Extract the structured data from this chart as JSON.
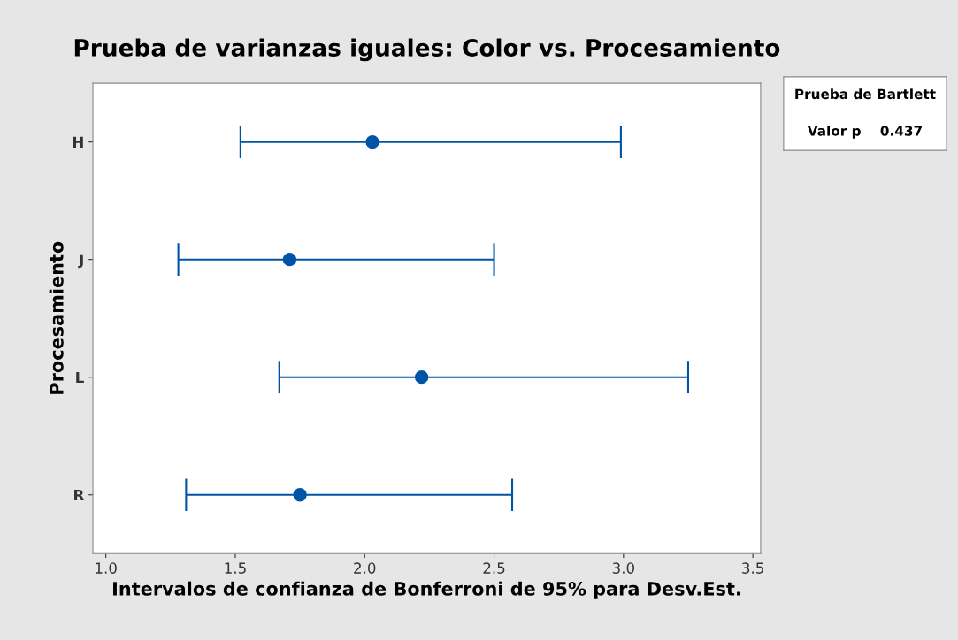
{
  "chart_data": {
    "type": "scatter",
    "orientation": "horizontal",
    "title": "Prueba de varianzas iguales: Color vs. Procesamiento",
    "xlabel": "Intervalos de confianza de Bonferroni de 95% para Desv.Est.",
    "ylabel": "Procesamiento",
    "categories": [
      "H",
      "J",
      "L",
      "R"
    ],
    "series": [
      {
        "color": "#0054a6",
        "values": [
          2.03,
          1.71,
          2.22,
          1.75
        ],
        "errors": [
          [
            1.52,
            2.99
          ],
          [
            1.28,
            2.5
          ],
          [
            1.67,
            3.25
          ],
          [
            1.31,
            2.57
          ]
        ]
      }
    ],
    "xlim": [
      0.95,
      3.53
    ],
    "xticks": [
      {
        "value": 1.0,
        "label": "1.0"
      },
      {
        "value": 1.5,
        "label": "1.5"
      },
      {
        "value": 2.0,
        "label": "2.0"
      },
      {
        "value": 2.5,
        "label": "2.5"
      },
      {
        "value": 3.0,
        "label": "3.0"
      },
      {
        "value": 3.5,
        "label": "3.5"
      }
    ],
    "marker": "circle",
    "grid": false,
    "legend": false,
    "annotations": [
      "Prueba de Bartlett",
      "Valor p    0.437"
    ]
  }
}
